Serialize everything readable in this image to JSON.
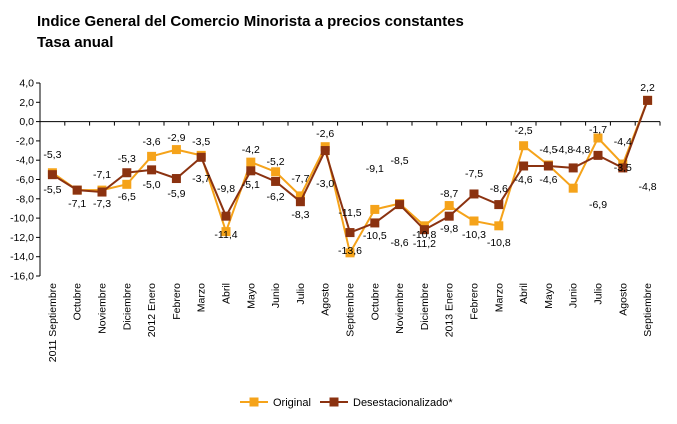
{
  "chart_data": {
    "type": "line",
    "title": "Indice General del Comercio Minorista a precios constantes",
    "subtitle": "Tasa anual",
    "xlabel": "",
    "ylabel": "",
    "ylim": [
      -16,
      4
    ],
    "yticks": [
      4,
      2,
      0,
      -2,
      -4,
      -6,
      -8,
      -10,
      -12,
      -14,
      -16
    ],
    "ytick_labels": [
      "4,0",
      "2,0",
      "0,0",
      "-2,0",
      "-4,0",
      "-6,0",
      "-8,0",
      "-10,0",
      "-12,0",
      "-14,0",
      "-16,0"
    ],
    "categories": [
      "2011 Septiembre",
      "Octubre",
      "Noviembre",
      "Diciembre",
      "2012 Enero",
      "Febrero",
      "Marzo",
      "Abril",
      "Mayo",
      "Junio",
      "Julio",
      "Agosto",
      "Septiembre",
      "Octubre",
      "Noviembre",
      "Diciembre",
      "2013 Enero",
      "Febrero",
      "Marzo",
      "Abril",
      "Mayo",
      "Junio",
      "Julio",
      "Agosto",
      "Septiembre"
    ],
    "legend_position": "bottom",
    "series": [
      {
        "name": "Original",
        "color": "#f5a31a",
        "values": [
          -5.3,
          -7.1,
          -7.1,
          -6.5,
          -3.6,
          -2.9,
          -3.5,
          -11.4,
          -4.2,
          -5.2,
          -7.7,
          -2.6,
          -13.6,
          -9.1,
          -8.5,
          -10.8,
          -8.7,
          -10.3,
          -10.8,
          -2.5,
          -4.5,
          -6.9,
          -1.7,
          -4.4,
          2.2
        ],
        "labels": [
          "-5,3",
          "-7,1",
          "-7,1",
          "-6,5",
          "-3,6",
          "-2,9",
          "-3,5",
          "-11,4",
          "-4,2",
          "-5,2",
          "-7,7",
          "-2,6",
          "-13,6",
          "-9,1",
          "-8,5",
          "-10,8",
          "-8,7",
          "-10,3",
          "-10,8",
          "-2,5",
          "-4,5",
          "-6,9",
          "-1,7",
          "-4,4",
          "2,2"
        ]
      },
      {
        "name": "Desestacionalizado*",
        "color": "#8b3210",
        "values": [
          -5.5,
          -7.1,
          -7.3,
          -5.3,
          -5.0,
          -5.9,
          -3.7,
          -9.8,
          -5.1,
          -6.2,
          -8.3,
          -3.0,
          -11.5,
          -10.5,
          -8.6,
          -11.2,
          -9.8,
          -7.5,
          -8.6,
          -4.6,
          -4.6,
          -4.8,
          -3.5,
          -4.8,
          2.2
        ],
        "labels": [
          "-5,5",
          "-7,1",
          "-7,3",
          "-5,3",
          "-5,0",
          "-5,9",
          "-3,7",
          "-9,8",
          "-5,1",
          "-6,2",
          "-8,3",
          "-3,0",
          "-11,5",
          "-10,5",
          "-8,6",
          "-11,2",
          "-9,8",
          "-7,5",
          "-8,6",
          "-4,6",
          "-4,6",
          "-4,8",
          "-3,5",
          "-4,8",
          "2,2"
        ]
      }
    ],
    "data_labels": [
      {
        "text": "-5,3"
      },
      {
        "text": "-5,5"
      },
      {
        "text": "-7,1"
      },
      {
        "text": "-7,1"
      },
      {
        "text": "-7,3"
      },
      {
        "text": "-5,3"
      },
      {
        "text": "-6,5"
      },
      {
        "text": "-3,6"
      },
      {
        "text": "-5,0"
      },
      {
        "text": "-2,9"
      },
      {
        "text": "-5,9"
      },
      {
        "text": "-3,5"
      },
      {
        "text": "-3,7"
      },
      {
        "text": "-9,8"
      },
      {
        "text": "-11,4"
      },
      {
        "text": "-4,2"
      },
      {
        "text": "-5,1"
      },
      {
        "text": "-5,2"
      },
      {
        "text": "-6,2"
      },
      {
        "text": "-7,7"
      },
      {
        "text": "-8,3"
      },
      {
        "text": "-2,6"
      },
      {
        "text": "-3,0"
      },
      {
        "text": "-11,5"
      },
      {
        "text": "-13,6"
      },
      {
        "text": "-9,1"
      },
      {
        "text": "-10,5"
      },
      {
        "text": "-8,5"
      },
      {
        "text": "-8,6"
      },
      {
        "text": "-10,8"
      },
      {
        "text": "-11,2"
      },
      {
        "text": "-8,7"
      },
      {
        "text": "-9,8"
      },
      {
        "text": "-7,5"
      },
      {
        "text": "-10,3"
      },
      {
        "text": "-8,6"
      },
      {
        "text": "-10,8"
      },
      {
        "text": "-2,5"
      },
      {
        "text": "-4,6"
      },
      {
        "text": "-4,5"
      },
      {
        "text": "-4,6"
      },
      {
        "text": "-4,8"
      },
      {
        "text": "-4,8"
      },
      {
        "text": "-6,9"
      },
      {
        "text": "-1,7"
      },
      {
        "text": "-3,5"
      },
      {
        "text": "-4,4"
      },
      {
        "text": "-4,8"
      },
      {
        "text": "2,2"
      }
    ]
  }
}
